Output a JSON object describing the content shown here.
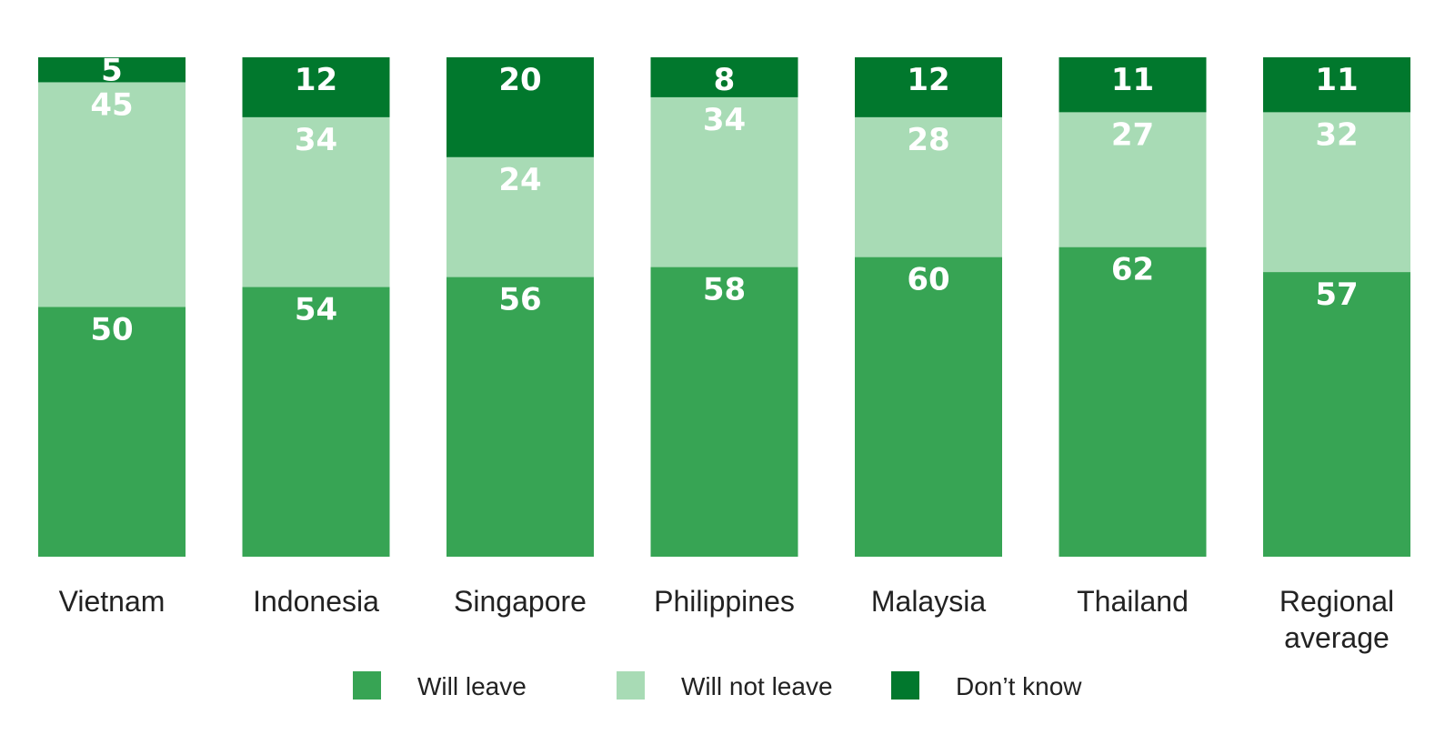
{
  "chart_data": {
    "type": "bar",
    "stacked": true,
    "orientation": "vertical",
    "categories": [
      "Vietnam",
      "Indonesia",
      "Singapore",
      "Philippines",
      "Malaysia",
      "Thailand",
      "Regional average"
    ],
    "series": [
      {
        "name": "Will leave",
        "color": "#37a454",
        "values": [
          50,
          54,
          56,
          58,
          60,
          62,
          57
        ]
      },
      {
        "name": "Will not leave",
        "color": "#a8dbb5",
        "values": [
          45,
          34,
          24,
          34,
          28,
          27,
          32
        ]
      },
      {
        "name": "Don’t know",
        "color": "#01782d",
        "values": [
          5,
          12,
          20,
          8,
          12,
          11,
          11
        ]
      }
    ],
    "data_labels": true,
    "legend_position": "bottom",
    "grid": false,
    "ylim": [
      0,
      100
    ]
  }
}
